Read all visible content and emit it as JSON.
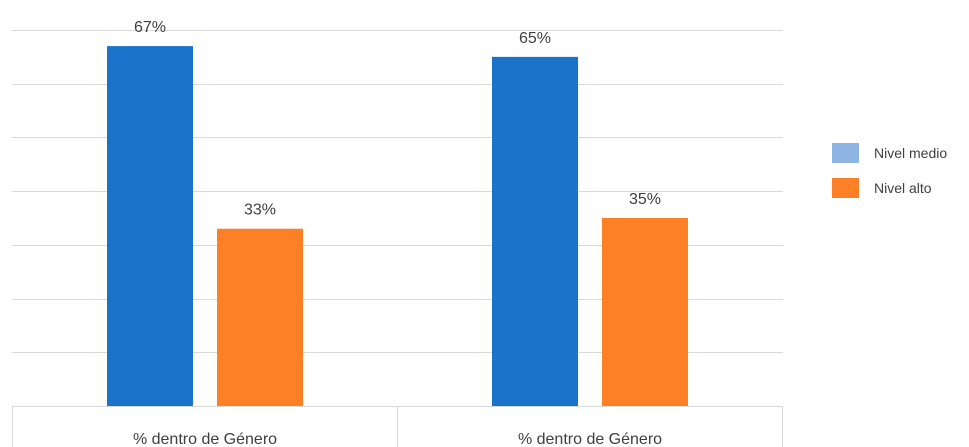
{
  "chart_data": {
    "type": "bar",
    "title": "",
    "xlabel": "",
    "ylabel": "",
    "categories": [
      "% dentro de Género",
      "% dentro de Género"
    ],
    "series": [
      {
        "name": "Nivel medio",
        "values": [
          67,
          65
        ],
        "labels": [
          "67%",
          "65%"
        ]
      },
      {
        "name": "Nivel alto",
        "values": [
          33,
          35
        ],
        "labels": [
          "33%",
          "35%"
        ]
      }
    ],
    "ylim": [
      0,
      70
    ],
    "y_gridlines": [
      0,
      10,
      20,
      30,
      40,
      50,
      60,
      70
    ],
    "grid": true,
    "legend_position": "right",
    "colors": {
      "bars": [
        "#1a73c9",
        "#fd8026"
      ],
      "legend_swatches": [
        "#8db3e2",
        "#fd8026"
      ],
      "grid": "#d9d9d9",
      "text": "#404040"
    }
  }
}
